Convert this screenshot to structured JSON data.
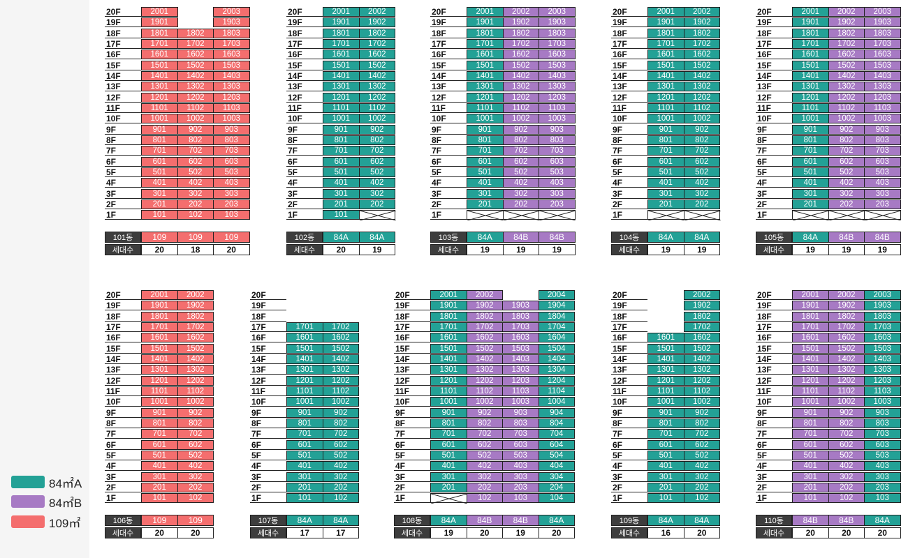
{
  "colors": {
    "84A": "#23a196",
    "84B": "#a77ac4",
    "109": "#f46e6e"
  },
  "legend": [
    {
      "type": "84A",
      "label": "84㎡A"
    },
    {
      "type": "84B",
      "label": "84㎡B"
    },
    {
      "type": "109",
      "label": "109㎡"
    }
  ],
  "household_label": "세대수",
  "floors": [
    "20F",
    "19F",
    "18F",
    "17F",
    "16F",
    "15F",
    "14F",
    "13F",
    "12F",
    "11F",
    "10F",
    "9F",
    "8F",
    "7F",
    "6F",
    "5F",
    "4F",
    "3F",
    "2F",
    "1F"
  ],
  "buildings": [
    {
      "name": "101동",
      "lines": [
        {
          "type": "109",
          "top_floor": 20,
          "empty_floors": [],
          "count": 20
        },
        {
          "type": "109",
          "top_floor": 18,
          "empty_floors": [],
          "count": 18
        },
        {
          "type": "109",
          "top_floor": 20,
          "empty_floors": [],
          "count": 20
        }
      ]
    },
    {
      "name": "102동",
      "lines": [
        {
          "type": "84A",
          "top_floor": 20,
          "empty_floors": [],
          "count": 20
        },
        {
          "type": "84A",
          "top_floor": 20,
          "empty_floors": [
            1
          ],
          "count": 19
        }
      ]
    },
    {
      "name": "103동",
      "lines": [
        {
          "type": "84A",
          "top_floor": 20,
          "empty_floors": [
            1
          ],
          "count": 19
        },
        {
          "type": "84B",
          "top_floor": 20,
          "empty_floors": [
            1
          ],
          "count": 19
        },
        {
          "type": "84B",
          "top_floor": 20,
          "empty_floors": [
            1
          ],
          "count": 19
        }
      ]
    },
    {
      "name": "104동",
      "lines": [
        {
          "type": "84A",
          "top_floor": 20,
          "empty_floors": [
            1
          ],
          "count": 19
        },
        {
          "type": "84A",
          "top_floor": 20,
          "empty_floors": [
            1
          ],
          "count": 19
        }
      ]
    },
    {
      "name": "105동",
      "lines": [
        {
          "type": "84A",
          "top_floor": 20,
          "empty_floors": [
            1
          ],
          "count": 19
        },
        {
          "type": "84B",
          "top_floor": 20,
          "empty_floors": [
            1
          ],
          "count": 19
        },
        {
          "type": "84B",
          "top_floor": 20,
          "empty_floors": [
            1
          ],
          "count": 19
        }
      ]
    },
    {
      "name": "106동",
      "lines": [
        {
          "type": "109",
          "top_floor": 20,
          "empty_floors": [],
          "count": 20
        },
        {
          "type": "109",
          "top_floor": 20,
          "empty_floors": [],
          "count": 20
        }
      ]
    },
    {
      "name": "107동",
      "lines": [
        {
          "type": "84A",
          "top_floor": 17,
          "empty_floors": [],
          "count": 17
        },
        {
          "type": "84A",
          "top_floor": 17,
          "empty_floors": [],
          "count": 17
        }
      ]
    },
    {
      "name": "108동",
      "lines": [
        {
          "type": "84A",
          "top_floor": 20,
          "empty_floors": [
            1
          ],
          "count": 19
        },
        {
          "type": "84B",
          "top_floor": 20,
          "empty_floors": [],
          "count": 20
        },
        {
          "type": "84B",
          "top_floor": 19,
          "empty_floors": [],
          "count": 19
        },
        {
          "type": "84A",
          "top_floor": 20,
          "empty_floors": [],
          "count": 20
        }
      ]
    },
    {
      "name": "109동",
      "lines": [
        {
          "type": "84A",
          "top_floor": 16,
          "empty_floors": [],
          "count": 16
        },
        {
          "type": "84A",
          "top_floor": 20,
          "empty_floors": [],
          "count": 20
        }
      ]
    },
    {
      "name": "110동",
      "lines": [
        {
          "type": "84B",
          "top_floor": 20,
          "empty_floors": [],
          "count": 20
        },
        {
          "type": "84B",
          "top_floor": 20,
          "empty_floors": [],
          "count": 20
        },
        {
          "type": "84A",
          "top_floor": 20,
          "empty_floors": [],
          "count": 20
        }
      ]
    }
  ]
}
